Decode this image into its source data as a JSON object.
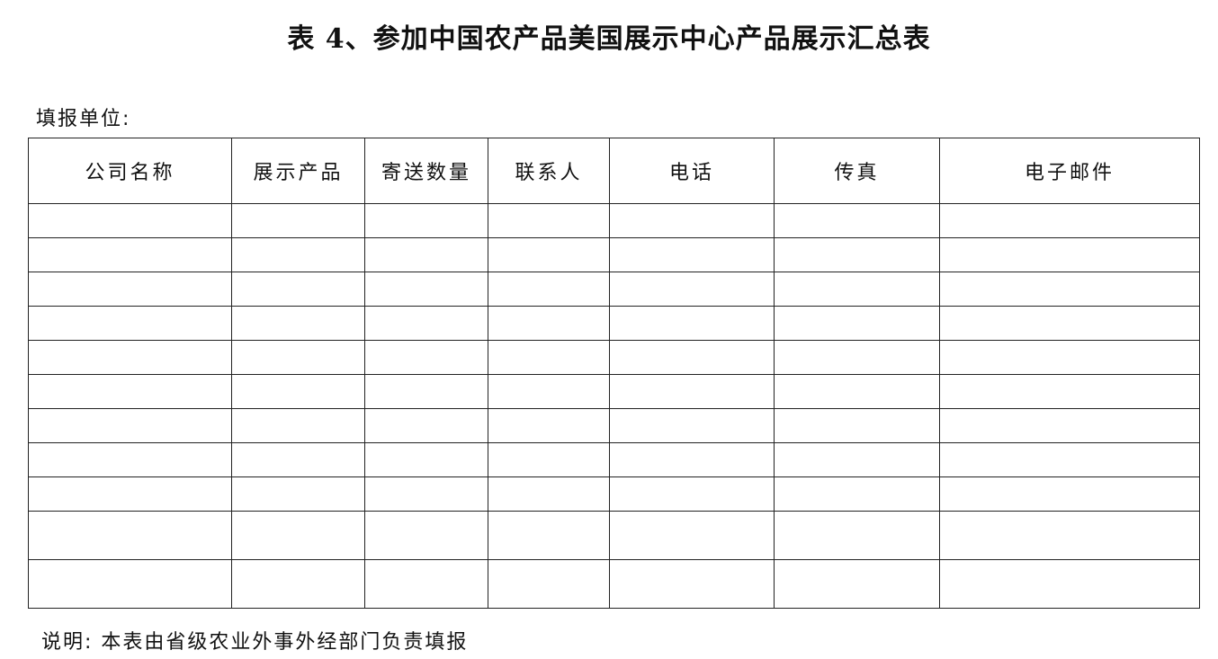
{
  "title": "表 4、参加中国农产品美国展示中心产品展示汇总表",
  "unit_label": "填报单位:",
  "table": {
    "headers": [
      "公司名称",
      "展示产品",
      "寄送数量",
      "联系人",
      "电话",
      "传真",
      "电子邮件"
    ],
    "rows": [
      [
        "",
        "",
        "",
        "",
        "",
        "",
        ""
      ],
      [
        "",
        "",
        "",
        "",
        "",
        "",
        ""
      ],
      [
        "",
        "",
        "",
        "",
        "",
        "",
        ""
      ],
      [
        "",
        "",
        "",
        "",
        "",
        "",
        ""
      ],
      [
        "",
        "",
        "",
        "",
        "",
        "",
        ""
      ],
      [
        "",
        "",
        "",
        "",
        "",
        "",
        ""
      ],
      [
        "",
        "",
        "",
        "",
        "",
        "",
        ""
      ],
      [
        "",
        "",
        "",
        "",
        "",
        "",
        ""
      ],
      [
        "",
        "",
        "",
        "",
        "",
        "",
        ""
      ],
      [
        "",
        "",
        "",
        "",
        "",
        "",
        ""
      ],
      [
        "",
        "",
        "",
        "",
        "",
        "",
        ""
      ]
    ]
  },
  "note": "说明: 本表由省级农业外事外经部门负责填报"
}
